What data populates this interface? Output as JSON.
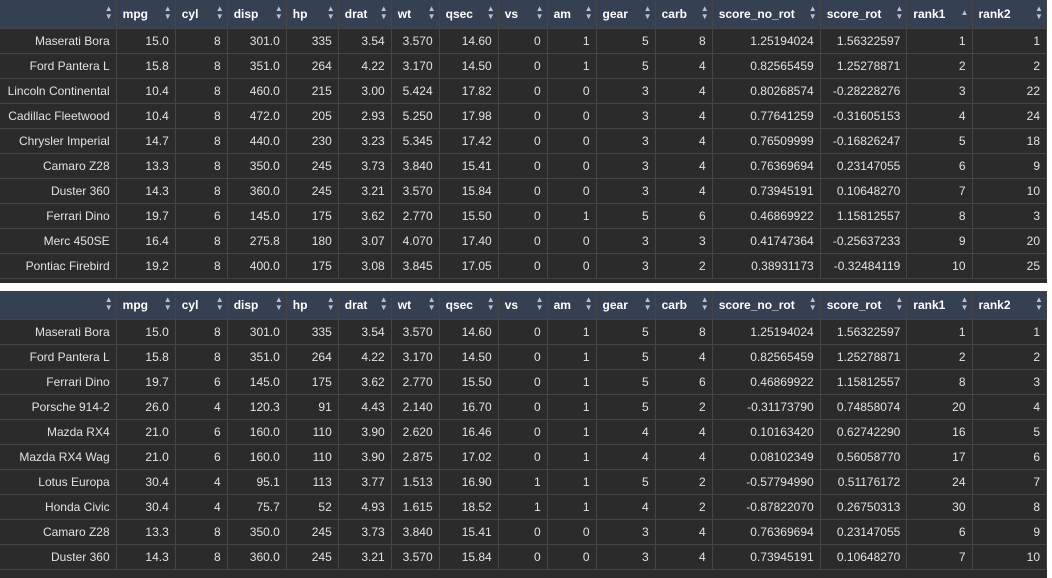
{
  "columns": [
    "",
    "mpg",
    "cyl",
    "disp",
    "hp",
    "drat",
    "wt",
    "qsec",
    "vs",
    "am",
    "gear",
    "carb",
    "score_no_rot",
    "score_rot",
    "rank1",
    "rank2"
  ],
  "sort_icons": {
    "default": "up-down-arrows-icon",
    "rank1_top": "sorted-ascending-icon"
  },
  "colors": {
    "header_bg": "#354052",
    "cell_bg": "#2b2b2b",
    "text": "#e2e2e2",
    "border": "#454545"
  },
  "table_top": {
    "rows": [
      [
        "Maserati Bora",
        "15.0",
        "8",
        "301.0",
        "335",
        "3.54",
        "3.570",
        "14.60",
        "0",
        "1",
        "5",
        "8",
        "1.25194024",
        "1.56322597",
        "1",
        "1"
      ],
      [
        "Ford Pantera L",
        "15.8",
        "8",
        "351.0",
        "264",
        "4.22",
        "3.170",
        "14.50",
        "0",
        "1",
        "5",
        "4",
        "0.82565459",
        "1.25278871",
        "2",
        "2"
      ],
      [
        "Lincoln Continental",
        "10.4",
        "8",
        "460.0",
        "215",
        "3.00",
        "5.424",
        "17.82",
        "0",
        "0",
        "3",
        "4",
        "0.80268574",
        "-0.28228276",
        "3",
        "22"
      ],
      [
        "Cadillac Fleetwood",
        "10.4",
        "8",
        "472.0",
        "205",
        "2.93",
        "5.250",
        "17.98",
        "0",
        "0",
        "3",
        "4",
        "0.77641259",
        "-0.31605153",
        "4",
        "24"
      ],
      [
        "Chrysler Imperial",
        "14.7",
        "8",
        "440.0",
        "230",
        "3.23",
        "5.345",
        "17.42",
        "0",
        "0",
        "3",
        "4",
        "0.76509999",
        "-0.16826247",
        "5",
        "18"
      ],
      [
        "Camaro Z28",
        "13.3",
        "8",
        "350.0",
        "245",
        "3.73",
        "3.840",
        "15.41",
        "0",
        "0",
        "3",
        "4",
        "0.76369694",
        "0.23147055",
        "6",
        "9"
      ],
      [
        "Duster 360",
        "14.3",
        "8",
        "360.0",
        "245",
        "3.21",
        "3.570",
        "15.84",
        "0",
        "0",
        "3",
        "4",
        "0.73945191",
        "0.10648270",
        "7",
        "10"
      ],
      [
        "Ferrari Dino",
        "19.7",
        "6",
        "145.0",
        "175",
        "3.62",
        "2.770",
        "15.50",
        "0",
        "1",
        "5",
        "6",
        "0.46869922",
        "1.15812557",
        "8",
        "3"
      ],
      [
        "Merc 450SE",
        "16.4",
        "8",
        "275.8",
        "180",
        "3.07",
        "4.070",
        "17.40",
        "0",
        "0",
        "3",
        "3",
        "0.41747364",
        "-0.25637233",
        "9",
        "20"
      ],
      [
        "Pontiac Firebird",
        "19.2",
        "8",
        "400.0",
        "175",
        "3.08",
        "3.845",
        "17.05",
        "0",
        "0",
        "3",
        "2",
        "0.38931173",
        "-0.32484119",
        "10",
        "25"
      ]
    ]
  },
  "table_bottom": {
    "rows": [
      [
        "Maserati Bora",
        "15.0",
        "8",
        "301.0",
        "335",
        "3.54",
        "3.570",
        "14.60",
        "0",
        "1",
        "5",
        "8",
        "1.25194024",
        "1.56322597",
        "1",
        "1"
      ],
      [
        "Ford Pantera L",
        "15.8",
        "8",
        "351.0",
        "264",
        "4.22",
        "3.170",
        "14.50",
        "0",
        "1",
        "5",
        "4",
        "0.82565459",
        "1.25278871",
        "2",
        "2"
      ],
      [
        "Ferrari Dino",
        "19.7",
        "6",
        "145.0",
        "175",
        "3.62",
        "2.770",
        "15.50",
        "0",
        "1",
        "5",
        "6",
        "0.46869922",
        "1.15812557",
        "8",
        "3"
      ],
      [
        "Porsche 914-2",
        "26.0",
        "4",
        "120.3",
        "91",
        "4.43",
        "2.140",
        "16.70",
        "0",
        "1",
        "5",
        "2",
        "-0.31173790",
        "0.74858074",
        "20",
        "4"
      ],
      [
        "Mazda RX4",
        "21.0",
        "6",
        "160.0",
        "110",
        "3.90",
        "2.620",
        "16.46",
        "0",
        "1",
        "4",
        "4",
        "0.10163420",
        "0.62742290",
        "16",
        "5"
      ],
      [
        "Mazda RX4 Wag",
        "21.0",
        "6",
        "160.0",
        "110",
        "3.90",
        "2.875",
        "17.02",
        "0",
        "1",
        "4",
        "4",
        "0.08102349",
        "0.56058770",
        "17",
        "6"
      ],
      [
        "Lotus Europa",
        "30.4",
        "4",
        "95.1",
        "113",
        "3.77",
        "1.513",
        "16.90",
        "1",
        "1",
        "5",
        "2",
        "-0.57794990",
        "0.51176172",
        "24",
        "7"
      ],
      [
        "Honda Civic",
        "30.4",
        "4",
        "75.7",
        "52",
        "4.93",
        "1.615",
        "18.52",
        "1",
        "1",
        "4",
        "2",
        "-0.87822070",
        "0.26750313",
        "30",
        "8"
      ],
      [
        "Camaro Z28",
        "13.3",
        "8",
        "350.0",
        "245",
        "3.73",
        "3.840",
        "15.41",
        "0",
        "0",
        "3",
        "4",
        "0.76369694",
        "0.23147055",
        "6",
        "9"
      ],
      [
        "Duster 360",
        "14.3",
        "8",
        "360.0",
        "245",
        "3.21",
        "3.570",
        "15.84",
        "0",
        "0",
        "3",
        "4",
        "0.73945191",
        "0.10648270",
        "7",
        "10"
      ]
    ]
  }
}
